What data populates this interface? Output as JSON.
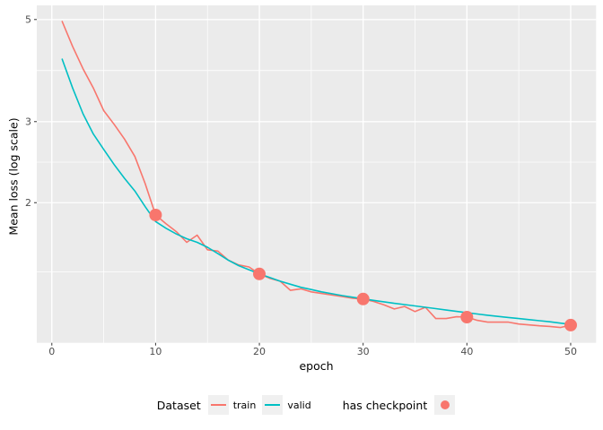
{
  "figure": {
    "bg": "#FFFFFF",
    "panel_bg": "#EBEBEB",
    "grid_color": "#FFFFFF",
    "tick_color": "#333333",
    "tick_label_color": "#4D4D4D",
    "axis_title_color": "#000000"
  },
  "axes": {
    "x_title": "epoch",
    "y_title": "Mean loss (log scale)",
    "x_tick_labels": [
      "0",
      "10",
      "20",
      "30",
      "40",
      "50"
    ],
    "y_tick_labels": [
      "5",
      "3",
      "2"
    ]
  },
  "legend": {
    "dataset_title": "Dataset",
    "items": [
      {
        "label": "train",
        "color": "#F8766D"
      },
      {
        "label": "valid",
        "color": "#00BFC4"
      }
    ],
    "checkpoint_title": "has checkpoint",
    "checkpoint_color": "#F8766D",
    "key_bg": "#F0F0F0"
  },
  "chart_data": {
    "type": "line",
    "title": "",
    "xlabel": "epoch",
    "ylabel": "Mean loss (log scale)",
    "y_scale": "log10",
    "legend_position": "bottom",
    "grid": true,
    "xlim": [
      -1.45,
      52.45
    ],
    "ylim_log10": [
      -0.0035,
      0.7297
    ],
    "x_major_ticks": [
      0,
      10,
      20,
      30,
      40,
      50
    ],
    "x_minor_ticks": [
      5,
      15,
      25,
      35,
      45
    ],
    "y_major_ticks": [
      5,
      3,
      2
    ],
    "y_minor_ticks": [
      3.873,
      2.449,
      1.414
    ],
    "x": [
      1,
      2,
      3,
      4,
      5,
      6,
      7,
      8,
      9,
      10,
      11,
      12,
      13,
      14,
      15,
      16,
      17,
      18,
      19,
      20,
      21,
      22,
      23,
      24,
      25,
      26,
      27,
      28,
      29,
      30,
      31,
      32,
      33,
      34,
      35,
      36,
      37,
      38,
      39,
      40,
      41,
      42,
      43,
      44,
      45,
      46,
      47,
      48,
      49,
      50
    ],
    "series": [
      {
        "name": "train",
        "color": "#F8766D",
        "values": [
          4.95,
          4.37,
          3.91,
          3.55,
          3.17,
          2.96,
          2.75,
          2.52,
          2.2,
          1.88,
          1.8,
          1.73,
          1.64,
          1.7,
          1.58,
          1.57,
          1.5,
          1.465,
          1.45,
          1.4,
          1.37,
          1.35,
          1.29,
          1.3,
          1.28,
          1.27,
          1.26,
          1.25,
          1.24,
          1.235,
          1.22,
          1.2,
          1.175,
          1.19,
          1.16,
          1.185,
          1.12,
          1.12,
          1.13,
          1.128,
          1.11,
          1.1,
          1.1,
          1.1,
          1.09,
          1.085,
          1.08,
          1.077,
          1.071,
          1.084
        ]
      },
      {
        "name": "valid",
        "color": "#00BFC4",
        "values": [
          4.1,
          3.55,
          3.12,
          2.82,
          2.61,
          2.42,
          2.26,
          2.12,
          1.96,
          1.82,
          1.76,
          1.71,
          1.67,
          1.64,
          1.6,
          1.55,
          1.5,
          1.46,
          1.43,
          1.4,
          1.375,
          1.35,
          1.33,
          1.31,
          1.295,
          1.28,
          1.268,
          1.256,
          1.246,
          1.236,
          1.227,
          1.218,
          1.209,
          1.201,
          1.193,
          1.185,
          1.177,
          1.169,
          1.161,
          1.153,
          1.146,
          1.139,
          1.132,
          1.126,
          1.12,
          1.114,
          1.108,
          1.102,
          1.095,
          1.088
        ]
      }
    ],
    "checkpoints": {
      "name": "has checkpoint",
      "color": "#F8766D",
      "epochs": [
        10,
        20,
        30,
        40,
        50
      ],
      "values": [
        1.88,
        1.4,
        1.235,
        1.128,
        1.084
      ],
      "point_radius_px": 7
    }
  }
}
